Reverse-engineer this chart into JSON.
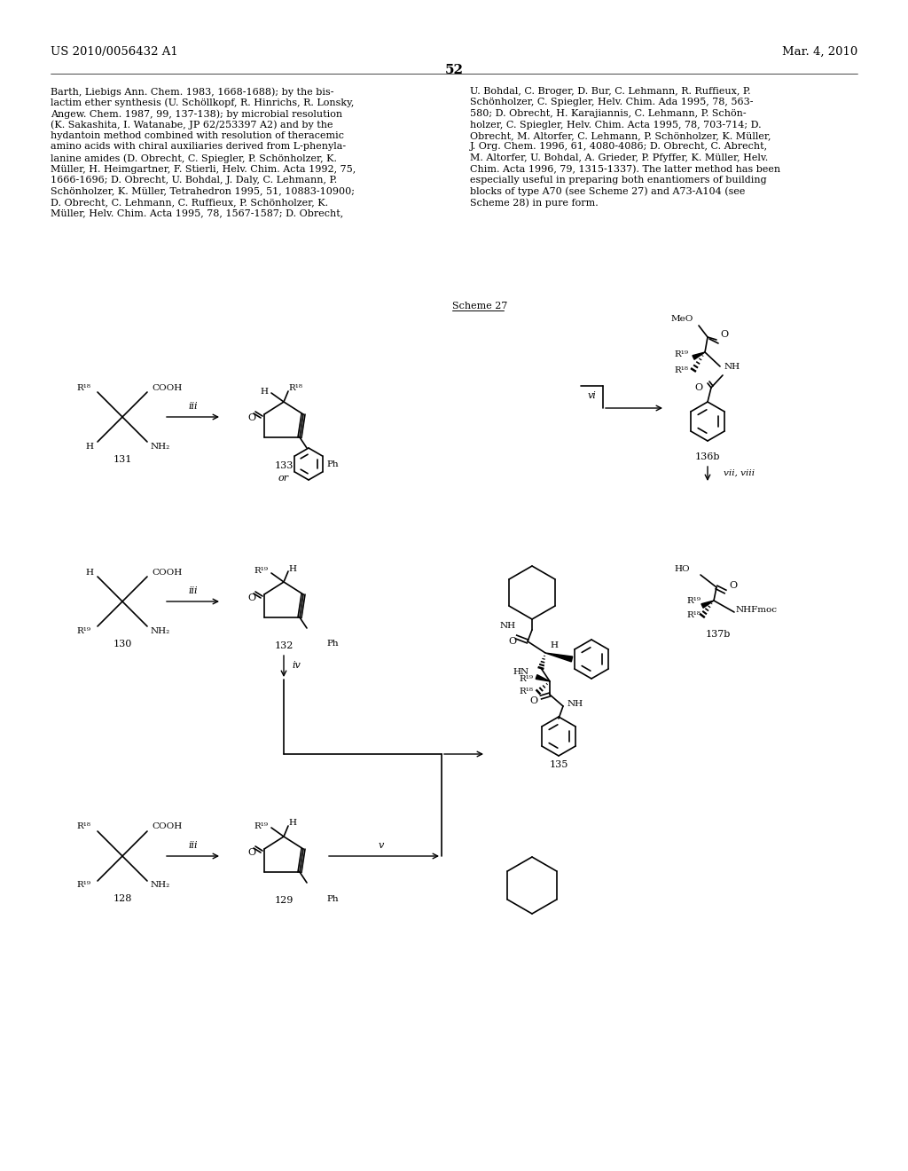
{
  "page_number": "52",
  "patent_number": "US 2010/0056432 A1",
  "patent_date": "Mar. 4, 2010",
  "background_color": "#ffffff",
  "text_color": "#000000",
  "left_lines": [
    "Barth, Liebigs Ann. Chem. 1983, 1668-1688); by the bis-",
    "lactim ether synthesis (U. Schöllkopf, R. Hinrichs, R. Lonsky,",
    "Angew. Chem. 1987, 99, 137-138); by microbial resolution",
    "(K. Sakashita, I. Watanabe, JP 62/253397 A2) and by the",
    "hydantoin method combined with resolution of theracemic",
    "amino acids with chiral auxiliaries derived from L-phenyla-",
    "lanine amides (D. Obrecht, C. Spiegler, P. Schönholzer, K.",
    "Müller, H. Heimgartner, F. Stierli, Helv. Chim. Acta 1992, 75,",
    "1666-1696; D. Obrecht, U. Bohdal, J. Daly, C. Lehmann, P.",
    "Schönholzer, K. Müller, Tetrahedron 1995, 51, 10883-10900;",
    "D. Obrecht, C. Lehmann, C. Ruffieux, P. Schönholzer, K.",
    "Müller, Helv. Chim. Acta 1995, 78, 1567-1587; D. Obrecht,"
  ],
  "right_lines": [
    "U. Bohdal, C. Broger, D. Bur, C. Lehmann, R. Ruffieux, P.",
    "Schönholzer, C. Spiegler, Helv. Chim. Ada 1995, 78, 563-",
    "580; D. Obrecht, H. Karajiannis, C. Lehmann, P. Schön-",
    "holzer, C. Spiegler, Helv. Chim. Acta 1995, 78, 703-714; D.",
    "Obrecht, M. Altorfer, C. Lehmann, P. Schönholzer, K. Müller,",
    "J. Org. Chem. 1996, 61, 4080-4086; D. Obrecht, C. Abrecht,",
    "M. Altorfer, U. Bohdal, A. Grieder, P. Pfyffer, K. Müller, Helv.",
    "Chim. Acta 1996, 79, 1315-1337). The latter method has been",
    "especially useful in preparing both enantiomers of building",
    "blocks of type A70 (see Scheme 27) and A73-A104 (see",
    "Scheme 28) in pure form."
  ]
}
